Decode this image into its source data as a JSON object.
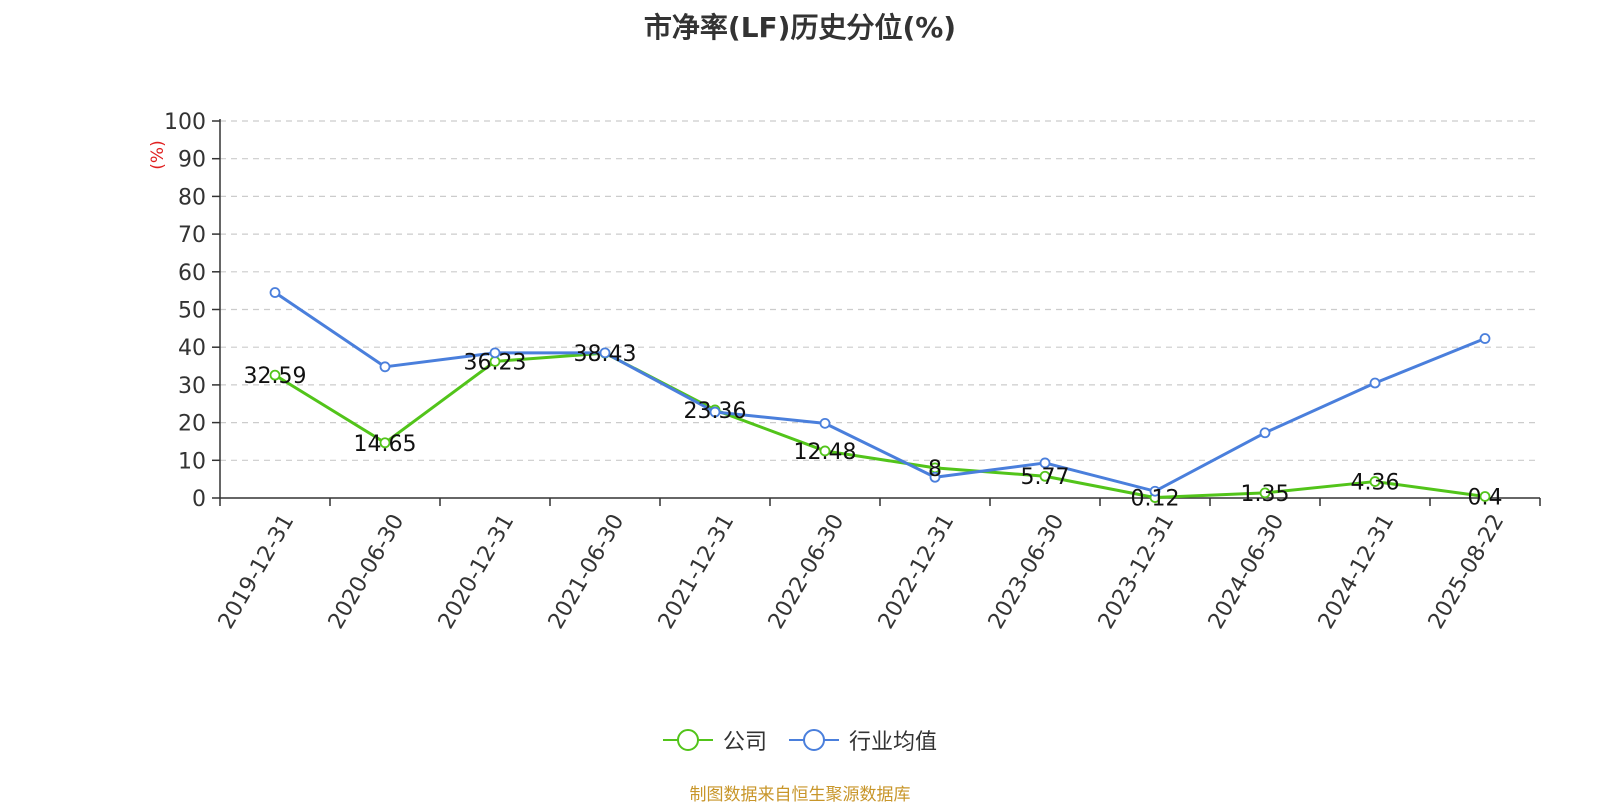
{
  "chart_data": {
    "type": "line",
    "title": "市净率(LF)历史分位(%)",
    "ylabel": "(%)",
    "ylim": [
      0,
      100
    ],
    "yticks": [
      0,
      10,
      20,
      30,
      40,
      50,
      60,
      70,
      80,
      90,
      100
    ],
    "categories": [
      "2019-12-31",
      "2020-06-30",
      "2020-12-31",
      "2021-06-30",
      "2021-12-31",
      "2022-06-30",
      "2022-12-31",
      "2023-06-30",
      "2023-12-31",
      "2024-06-30",
      "2024-12-31",
      "2025-08-22"
    ],
    "series": [
      {
        "name": "公司",
        "color": "#52c41a",
        "values": [
          32.59,
          14.65,
          36.23,
          38.43,
          23.36,
          12.48,
          8,
          5.77,
          0.12,
          1.35,
          4.36,
          0.4
        ],
        "labels": [
          "32.59",
          "14.65",
          "36.23",
          "38.43",
          "23.36",
          "12.48",
          "8",
          "5.77",
          "0.12",
          "1.35",
          "4.36",
          "0.4"
        ]
      },
      {
        "name": "行业均值",
        "color": "#4a7fdc",
        "values": [
          54.5,
          34.8,
          38.5,
          38.5,
          22.8,
          19.8,
          5.5,
          9.3,
          1.8,
          17.3,
          30.5,
          42.3
        ]
      }
    ],
    "grid": true,
    "legend_position": "bottom-center"
  },
  "source": "制图数据来自恒生聚源数据库"
}
